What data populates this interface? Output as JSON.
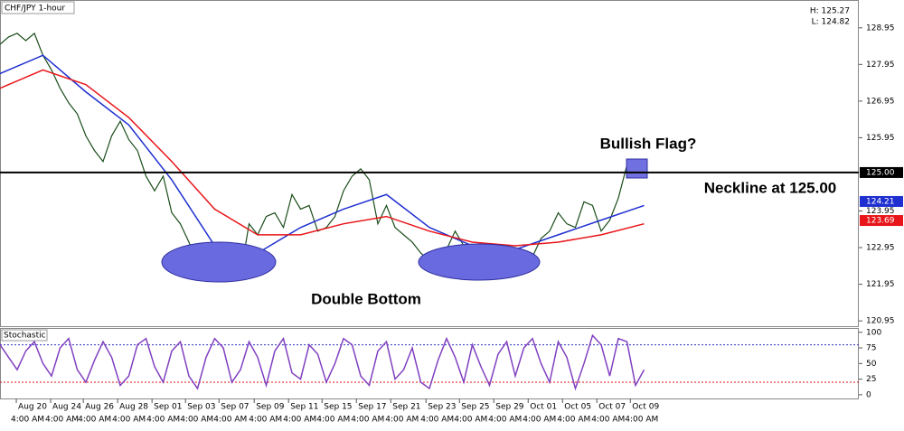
{
  "chart_data": [
    {
      "type": "line",
      "title": "CHF/JPY 1-hour",
      "high_label": "H: 125.27",
      "low_label": "L: 124.82",
      "annotations": [
        "Bullish Flag?",
        "Neckline at 125.00",
        "Double Bottom"
      ],
      "xlim": [
        0,
        100
      ],
      "ylim": [
        120.83,
        129.66
      ],
      "xticks": [
        {
          "value": 1.9,
          "label": "Aug 20"
        },
        {
          "value": 5.9,
          "label": "Aug 24"
        },
        {
          "value": 9.7,
          "label": "Aug 26"
        },
        {
          "value": 13.7,
          "label": "Aug 28"
        },
        {
          "value": 17.7,
          "label": "Sep 01"
        },
        {
          "value": 21.6,
          "label": "Sep 03"
        },
        {
          "value": 25.5,
          "label": "Sep 07"
        },
        {
          "value": 29.6,
          "label": "Sep 09"
        },
        {
          "value": 33.6,
          "label": "Sep 11"
        },
        {
          "value": 37.5,
          "label": "Sep 15"
        },
        {
          "value": 41.5,
          "label": "Sep 17"
        },
        {
          "value": 45.5,
          "label": "Sep 21"
        },
        {
          "value": 49.6,
          "label": "Sep 23"
        },
        {
          "value": 53.5,
          "label": "Sep 25"
        },
        {
          "value": 57.5,
          "label": "Sep 29"
        },
        {
          "value": 61.5,
          "label": "Oct 01"
        },
        {
          "value": 65.5,
          "label": "Oct 05"
        },
        {
          "value": 69.5,
          "label": "Oct 07"
        },
        {
          "value": 73.4,
          "label": "Oct 09"
        }
      ],
      "xtick_times": [
        "4:00 AM",
        "4:00 AM",
        "4:00 AM",
        "4:00 AM",
        "4:00 AM",
        "4:00 AM",
        "4:00 AM",
        "4:00 AM",
        "4:00 AM",
        "4:00 AM",
        "4:00 AM",
        "4:00 AM",
        "4:00 AM",
        "4:00 AM",
        "4:00 AM",
        "4:00 AM",
        "4:00 AM",
        "4:00 AM",
        "4:00 AM"
      ],
      "yticks": [
        128.95,
        127.95,
        126.95,
        125.95,
        123.95,
        122.95,
        121.95,
        120.95
      ],
      "price_tags": [
        {
          "value": 125,
          "label": "125.00",
          "color": "#000000"
        },
        {
          "value": 124.21,
          "label": "124.21",
          "color": "#1f2fd0"
        },
        {
          "value": 123.69,
          "label": "123.69",
          "color": "#e8161a"
        }
      ],
      "series": [
        {
          "color": "#1a4d1a",
          "x": [
            0,
            1,
            2,
            3,
            4,
            5,
            6,
            7,
            8,
            9,
            10,
            11,
            12,
            13,
            14,
            15,
            16,
            17,
            18,
            19,
            20,
            21,
            22,
            23,
            24,
            25,
            26,
            27,
            28,
            29,
            30,
            31,
            32,
            33,
            34,
            35,
            36,
            37,
            38,
            39,
            40,
            41,
            42,
            43,
            44,
            45,
            46,
            47,
            48,
            49,
            50,
            51,
            52,
            53,
            54,
            55,
            56,
            57,
            58,
            59,
            60,
            61,
            62,
            63,
            64,
            65,
            66,
            67,
            68,
            69,
            70,
            71,
            72,
            73,
            74,
            75
          ],
          "values": [
            128.5,
            128.7,
            128.8,
            128.6,
            128.8,
            128.2,
            127.8,
            127.3,
            126.9,
            126.6,
            126.0,
            125.6,
            125.3,
            126.0,
            126.4,
            125.9,
            125.6,
            124.9,
            124.5,
            124.9,
            123.9,
            123.6,
            123.1,
            122.5,
            122.3,
            122.1,
            122.4,
            122.5,
            122.2,
            123.6,
            123.3,
            123.8,
            123.9,
            123.5,
            124.4,
            124.0,
            124.1,
            123.4,
            123.5,
            123.8,
            124.5,
            124.9,
            125.1,
            124.8,
            123.6,
            124.1,
            123.5,
            123.3,
            123.1,
            122.8,
            122.6,
            122.6,
            122.9,
            123.4,
            123.0,
            122.8,
            122.7,
            122.9,
            122.9,
            123.0,
            122.9,
            122.6,
            122.7,
            123.2,
            123.4,
            123.9,
            123.6,
            123.5,
            124.2,
            124.1,
            123.4,
            123.7,
            124.3,
            125.2,
            125.1,
            125.1
          ]
        },
        {
          "color": "#1f2fd0",
          "x": [
            0,
            5,
            10,
            15,
            20,
            25,
            30,
            35,
            40,
            45,
            50,
            55,
            60,
            65,
            70,
            75
          ],
          "values": [
            127.7,
            128.2,
            127.2,
            126.3,
            124.8,
            123.0,
            122.8,
            123.5,
            124.0,
            124.4,
            123.5,
            123.0,
            122.9,
            123.3,
            123.7,
            124.1
          ]
        },
        {
          "color": "#e8161a",
          "x": [
            0,
            5,
            10,
            15,
            20,
            25,
            30,
            35,
            40,
            45,
            50,
            55,
            60,
            65,
            70,
            75
          ],
          "values": [
            127.3,
            127.8,
            127.4,
            126.5,
            125.3,
            124.0,
            123.3,
            123.3,
            123.6,
            123.8,
            123.4,
            123.1,
            123.0,
            123.1,
            123.3,
            123.6
          ]
        }
      ]
    },
    {
      "type": "line",
      "title": "Stochastic",
      "xlim": [
        0,
        100
      ],
      "ylim": [
        -6,
        104
      ],
      "yticks": [
        100,
        75,
        50,
        25,
        0
      ],
      "levels": [
        {
          "value": 80,
          "color": "#3030c0"
        },
        {
          "value": 20,
          "color": "#e01010"
        }
      ],
      "series": [
        {
          "color": "#8040c0",
          "x": [
            0,
            1,
            2,
            3,
            4,
            5,
            6,
            7,
            8,
            9,
            10,
            11,
            12,
            13,
            14,
            15,
            16,
            17,
            18,
            19,
            20,
            21,
            22,
            23,
            24,
            25,
            26,
            27,
            28,
            29,
            30,
            31,
            32,
            33,
            34,
            35,
            36,
            37,
            38,
            39,
            40,
            41,
            42,
            43,
            44,
            45,
            46,
            47,
            48,
            49,
            50,
            51,
            52,
            53,
            54,
            55,
            56,
            57,
            58,
            59,
            60,
            61,
            62,
            63,
            64,
            65,
            66,
            67,
            68,
            69,
            70,
            71,
            72,
            73,
            74,
            75
          ],
          "values": [
            80,
            60,
            40,
            70,
            85,
            50,
            30,
            75,
            90,
            40,
            20,
            55,
            85,
            60,
            15,
            30,
            80,
            90,
            45,
            20,
            70,
            85,
            30,
            10,
            60,
            90,
            75,
            20,
            40,
            85,
            60,
            15,
            70,
            90,
            35,
            25,
            80,
            65,
            20,
            50,
            90,
            80,
            30,
            15,
            70,
            85,
            25,
            40,
            75,
            20,
            10,
            55,
            90,
            60,
            20,
            80,
            45,
            15,
            65,
            85,
            30,
            75,
            90,
            50,
            20,
            85,
            60,
            10,
            50,
            95,
            80,
            30,
            90,
            85,
            15,
            40
          ]
        }
      ]
    }
  ]
}
